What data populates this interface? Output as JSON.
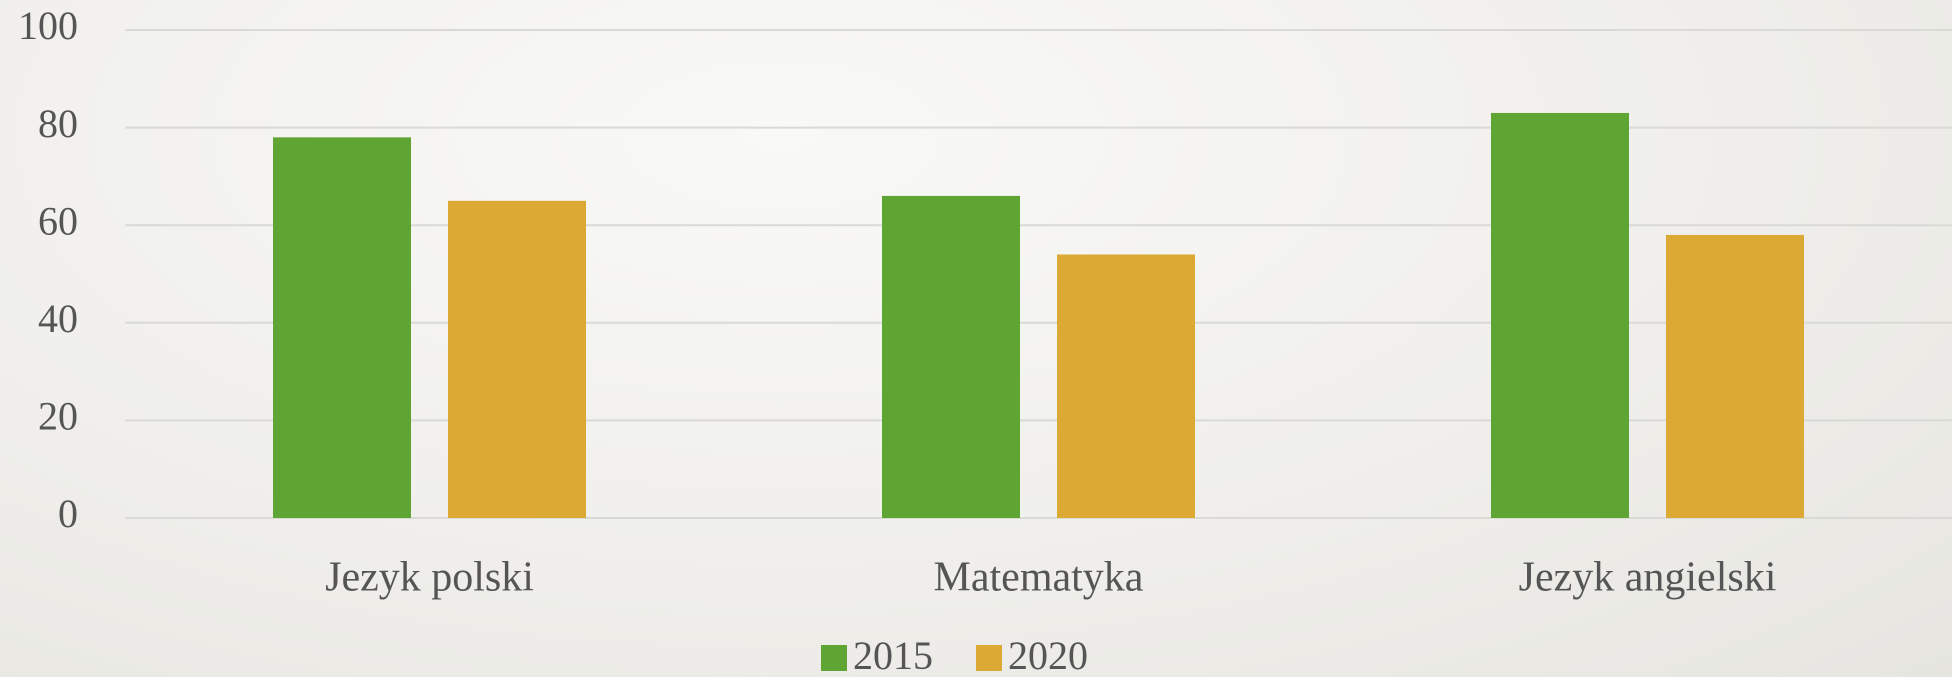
{
  "chart_data": {
    "type": "bar",
    "categories": [
      "Jezyk polski",
      "Matematyka",
      "Jezyk angielski"
    ],
    "series": [
      {
        "name": "2015",
        "color": "#5fa533",
        "values": [
          78,
          66,
          83
        ]
      },
      {
        "name": "2020",
        "color": "#dcaa34",
        "values": [
          65,
          54,
          58
        ]
      }
    ],
    "ylim": [
      0,
      100
    ],
    "yticks": [
      0,
      20,
      40,
      60,
      80,
      100
    ],
    "grid": true,
    "legend": "bottom"
  }
}
